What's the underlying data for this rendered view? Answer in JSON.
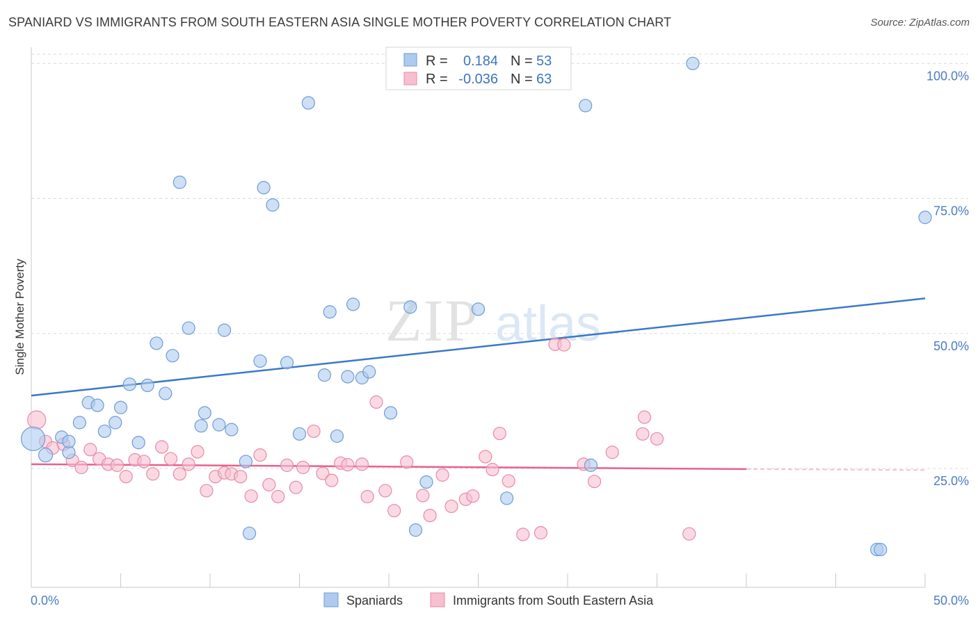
{
  "title": "SPANIARD VS IMMIGRANTS FROM SOUTH EASTERN ASIA SINGLE MOTHER POVERTY CORRELATION CHART",
  "source": "Source: ZipAtlas.com",
  "watermark": {
    "zip": "ZIP",
    "atlas": "atlas"
  },
  "colors": {
    "blue": "#3b78c8",
    "blue_fill": "#aecbee",
    "pink": "#e8608c",
    "pink_fill": "#f6c0d0",
    "tick_text": "#4a7cc4",
    "grid": "#d8d8d8"
  },
  "stats_box": {
    "rows": [
      {
        "r_label": "R =",
        "r_value": "0.184",
        "n_label": "N =",
        "n_value": "53"
      },
      {
        "r_label": "R =",
        "r_value": "-0.036",
        "n_label": "N =",
        "n_value": "63"
      }
    ]
  },
  "chart_data": {
    "type": "scatter",
    "title": "SPANIARD VS IMMIGRANTS FROM SOUTH EASTERN ASIA SINGLE MOTHER POVERTY CORRELATION CHART",
    "xlabel": "",
    "ylabel": "Single Mother Poverty",
    "xlim": [
      0,
      50
    ],
    "ylim": [
      3,
      103
    ],
    "x_tick_labels": [
      "0.0%",
      "50.0%"
    ],
    "y_tick_labels": [
      {
        "value": 100,
        "label": "100.0%"
      },
      {
        "value": 75,
        "label": "75.0%"
      },
      {
        "value": 50,
        "label": "50.0%"
      },
      {
        "value": 25,
        "label": "25.0%"
      }
    ],
    "grid": true,
    "legend_position": "bottom-center",
    "series": [
      {
        "name": "Spaniards",
        "color": "blue",
        "r": 0.184,
        "n": 53,
        "trend": {
          "x": [
            0,
            50
          ],
          "y": [
            38.5,
            56.5
          ]
        },
        "points": [
          [
            0.1,
            30.5
          ],
          [
            0.8,
            27.5
          ],
          [
            1.7,
            30.8
          ],
          [
            2.1,
            28.0
          ],
          [
            2.1,
            30.0
          ],
          [
            2.7,
            33.5
          ],
          [
            3.2,
            37.2
          ],
          [
            3.7,
            36.7
          ],
          [
            4.1,
            31.9
          ],
          [
            4.7,
            33.5
          ],
          [
            5.0,
            36.3
          ],
          [
            5.5,
            40.6
          ],
          [
            6.0,
            29.8
          ],
          [
            6.5,
            40.4
          ],
          [
            7.0,
            48.2
          ],
          [
            7.5,
            38.9
          ],
          [
            7.9,
            45.9
          ],
          [
            8.3,
            78.0
          ],
          [
            8.8,
            51.0
          ],
          [
            9.5,
            32.9
          ],
          [
            9.7,
            35.3
          ],
          [
            10.5,
            33.1
          ],
          [
            10.8,
            50.6
          ],
          [
            11.2,
            32.2
          ],
          [
            12.0,
            26.3
          ],
          [
            12.2,
            13.0
          ],
          [
            12.8,
            44.9
          ],
          [
            13.0,
            77.0
          ],
          [
            13.5,
            73.8
          ],
          [
            14.3,
            44.6
          ],
          [
            15.0,
            31.4
          ],
          [
            15.5,
            92.7
          ],
          [
            16.4,
            42.3
          ],
          [
            16.7,
            54.0
          ],
          [
            17.1,
            31.0
          ],
          [
            17.7,
            42.0
          ],
          [
            18.0,
            55.4
          ],
          [
            18.5,
            41.8
          ],
          [
            18.9,
            42.9
          ],
          [
            20.1,
            35.3
          ],
          [
            21.2,
            54.9
          ],
          [
            21.5,
            13.6
          ],
          [
            22.1,
            22.5
          ],
          [
            22.5,
            100.0
          ],
          [
            23.5,
            100.0
          ],
          [
            25.0,
            54.5
          ],
          [
            26.6,
            19.5
          ],
          [
            31.0,
            92.2
          ],
          [
            31.3,
            25.6
          ],
          [
            37.0,
            100.0
          ],
          [
            47.3,
            10.0
          ],
          [
            47.5,
            10.0
          ],
          [
            50.0,
            71.5
          ]
        ]
      },
      {
        "name": "Immigrants from South Eastern Asia",
        "color": "pink",
        "r": -0.036,
        "n": 63,
        "trend": {
          "x": [
            0,
            40
          ],
          "y": [
            25.8,
            24.9
          ]
        },
        "trend_dashed": {
          "x": [
            40,
            50
          ],
          "y": [
            24.9,
            24.7
          ]
        },
        "points": [
          [
            0.3,
            34.0
          ],
          [
            0.8,
            30.0
          ],
          [
            1.2,
            28.8
          ],
          [
            1.8,
            29.5
          ],
          [
            2.3,
            26.5
          ],
          [
            2.8,
            25.2
          ],
          [
            3.3,
            28.5
          ],
          [
            3.8,
            26.8
          ],
          [
            4.3,
            25.8
          ],
          [
            4.8,
            25.6
          ],
          [
            5.3,
            23.5
          ],
          [
            5.8,
            26.6
          ],
          [
            6.3,
            26.3
          ],
          [
            6.8,
            24.0
          ],
          [
            7.3,
            29.0
          ],
          [
            7.8,
            26.8
          ],
          [
            8.3,
            24.0
          ],
          [
            8.8,
            25.8
          ],
          [
            9.3,
            28.1
          ],
          [
            9.8,
            20.9
          ],
          [
            10.3,
            23.5
          ],
          [
            10.8,
            24.2
          ],
          [
            11.2,
            24.0
          ],
          [
            11.7,
            23.5
          ],
          [
            12.3,
            19.9
          ],
          [
            12.8,
            27.5
          ],
          [
            13.3,
            22.0
          ],
          [
            13.8,
            19.8
          ],
          [
            14.3,
            25.6
          ],
          [
            14.8,
            21.5
          ],
          [
            15.2,
            25.2
          ],
          [
            15.8,
            31.9
          ],
          [
            16.3,
            24.1
          ],
          [
            16.8,
            22.8
          ],
          [
            17.3,
            26.0
          ],
          [
            17.7,
            25.7
          ],
          [
            18.5,
            25.8
          ],
          [
            18.8,
            19.8
          ],
          [
            19.3,
            37.3
          ],
          [
            19.8,
            20.9
          ],
          [
            20.3,
            17.2
          ],
          [
            21.0,
            26.2
          ],
          [
            21.9,
            20.0
          ],
          [
            22.3,
            16.3
          ],
          [
            23.0,
            23.8
          ],
          [
            23.5,
            18.0
          ],
          [
            24.3,
            19.3
          ],
          [
            24.7,
            19.9
          ],
          [
            25.4,
            27.2
          ],
          [
            25.8,
            24.8
          ],
          [
            26.2,
            31.5
          ],
          [
            26.7,
            22.7
          ],
          [
            27.5,
            12.8
          ],
          [
            28.5,
            13.1
          ],
          [
            29.3,
            48.0
          ],
          [
            29.8,
            47.9
          ],
          [
            30.9,
            25.8
          ],
          [
            31.5,
            22.6
          ],
          [
            32.5,
            28.0
          ],
          [
            34.2,
            31.4
          ],
          [
            34.3,
            34.5
          ],
          [
            35.0,
            30.5
          ],
          [
            36.8,
            12.9
          ]
        ]
      }
    ]
  }
}
